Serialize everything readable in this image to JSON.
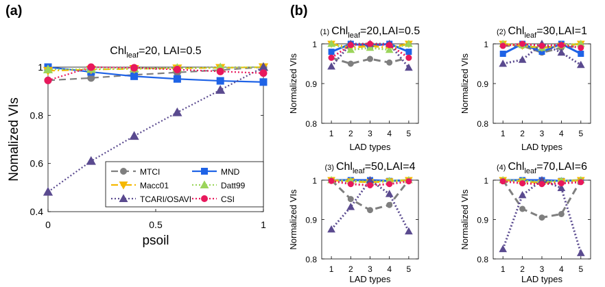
{
  "figure": {
    "panel_a_letter": "(a)",
    "panel_b_letter": "(b)"
  },
  "colors": {
    "MTCI": "#7f7f7f",
    "MND": "#1f63e6",
    "Macc01": "#f5b800",
    "Datt99": "#9bd45a",
    "TCARI/OSAVI": "#5a4a8f",
    "CSI": "#e8185c"
  },
  "chart_data": [
    {
      "id": "a",
      "type": "line",
      "title_main": "Chl",
      "title_sub": "leaf",
      "title_rest": "=20, LAI=0.5",
      "xlabel": "psoil",
      "ylabel": "Nomalized VIs",
      "xlim": [
        0,
        1
      ],
      "ylim": [
        0.4,
        1.0
      ],
      "xticks": [
        "0",
        "0.5",
        "1"
      ],
      "xtick_values": [
        0,
        0.5,
        1
      ],
      "yticks": [
        "0.4",
        "0.6",
        "0.8",
        "1"
      ],
      "ytick_values": [
        0.4,
        0.6,
        0.8,
        1.0
      ],
      "x": [
        0,
        0.2,
        0.4,
        0.6,
        0.8,
        1.0
      ],
      "legend_position": "lower-right",
      "series": [
        {
          "name": "MTCI",
          "style": "dashed",
          "marker": "circle",
          "values": [
            0.945,
            0.955,
            0.968,
            0.978,
            0.988,
            1.0
          ]
        },
        {
          "name": "MND",
          "style": "solid",
          "marker": "square",
          "values": [
            1.0,
            0.98,
            0.962,
            0.951,
            0.943,
            0.938
          ]
        },
        {
          "name": "Macc01",
          "style": "dashdot",
          "marker": "triangle-down",
          "values": [
            0.985,
            0.99,
            0.993,
            0.995,
            0.997,
            1.0
          ]
        },
        {
          "name": "Datt99",
          "style": "dotted",
          "marker": "triangle-up",
          "values": [
            0.99,
            0.992,
            0.994,
            0.996,
            0.998,
            1.0
          ]
        },
        {
          "name": "TCARI/OSAVI",
          "style": "dotted",
          "marker": "triangle-up",
          "values": [
            0.482,
            0.61,
            0.714,
            0.812,
            0.905,
            1.0
          ]
        },
        {
          "name": "CSI",
          "style": "dotted",
          "marker": "circle",
          "values": [
            0.945,
            1.0,
            0.997,
            0.99,
            0.982,
            0.975
          ]
        }
      ]
    },
    {
      "id": "b1",
      "type": "line",
      "tag": "(1)",
      "title_main": "Chl",
      "title_sub": "leaf",
      "title_rest": "=20,LAI=0.5",
      "xlabel": "LAD types",
      "ylabel": "Normalized VIs",
      "categories": [
        "1",
        "2",
        "3",
        "4",
        "5"
      ],
      "ylim": [
        0.8,
        1.0
      ],
      "yticks": [
        "0.8",
        "0.9",
        "1"
      ],
      "ytick_values": [
        0.8,
        0.9,
        1.0
      ],
      "series": [
        {
          "name": "MTCI",
          "values": [
            0.965,
            0.95,
            0.962,
            0.953,
            0.965
          ]
        },
        {
          "name": "MND",
          "values": [
            0.98,
            1.0,
            0.995,
            1.0,
            0.98
          ]
        },
        {
          "name": "Macc01",
          "values": [
            1.0,
            0.99,
            0.995,
            0.99,
            1.0
          ]
        },
        {
          "name": "Datt99",
          "values": [
            1.0,
            0.985,
            0.99,
            0.985,
            1.0
          ]
        },
        {
          "name": "TCARI/OSAVI",
          "values": [
            0.943,
            1.0,
            1.0,
            1.0,
            0.94
          ]
        },
        {
          "name": "CSI",
          "values": [
            0.965,
            0.997,
            1.0,
            0.997,
            0.965
          ]
        }
      ]
    },
    {
      "id": "b2",
      "type": "line",
      "tag": "(2)",
      "title_main": "Chl",
      "title_sub": "leaf",
      "title_rest": "=30,LAI=1",
      "xlabel": "LAD types",
      "ylabel": "Normalized VIs",
      "categories": [
        "1",
        "2",
        "3",
        "4",
        "5"
      ],
      "ylim": [
        0.8,
        1.0
      ],
      "yticks": [
        "0.8",
        "0.9",
        "1"
      ],
      "ytick_values": [
        0.8,
        0.9,
        1.0
      ],
      "series": [
        {
          "name": "MTCI",
          "values": [
            0.995,
            0.995,
            0.978,
            0.99,
            0.995
          ]
        },
        {
          "name": "MND",
          "values": [
            0.975,
            1.0,
            0.98,
            1.0,
            0.975
          ]
        },
        {
          "name": "Macc01",
          "values": [
            1.0,
            0.995,
            0.99,
            0.995,
            1.0
          ]
        },
        {
          "name": "Datt99",
          "values": [
            1.0,
            0.997,
            0.99,
            0.997,
            1.0
          ]
        },
        {
          "name": "TCARI/OSAVI",
          "values": [
            0.95,
            0.96,
            1.0,
            0.978,
            0.947
          ]
        },
        {
          "name": "CSI",
          "values": [
            0.995,
            1.0,
            0.995,
            0.997,
            0.99
          ]
        }
      ]
    },
    {
      "id": "b3",
      "type": "line",
      "tag": "(3)",
      "title_main": "Chl",
      "title_sub": "leaf",
      "title_rest": "=50,LAI=4",
      "xlabel": "LAD types",
      "ylabel": "Normalized VIs",
      "categories": [
        "1",
        "2",
        "3",
        "4",
        "5"
      ],
      "ylim": [
        0.8,
        1.0
      ],
      "yticks": [
        "0.8",
        "0.9",
        "1"
      ],
      "ytick_values": [
        0.8,
        0.9,
        1.0
      ],
      "series": [
        {
          "name": "MTCI",
          "values": [
            1.0,
            0.952,
            0.924,
            0.937,
            1.0
          ]
        },
        {
          "name": "MND",
          "values": [
            1.0,
            1.0,
            1.0,
            0.998,
            1.0
          ]
        },
        {
          "name": "Macc01",
          "values": [
            1.0,
            0.997,
            0.995,
            0.997,
            1.0
          ]
        },
        {
          "name": "Datt99",
          "values": [
            1.0,
            0.998,
            0.996,
            0.998,
            1.0
          ]
        },
        {
          "name": "TCARI/OSAVI",
          "values": [
            0.875,
            0.932,
            1.0,
            0.965,
            0.87
          ]
        },
        {
          "name": "CSI",
          "values": [
            0.998,
            0.99,
            0.987,
            0.99,
            0.997
          ]
        }
      ]
    },
    {
      "id": "b4",
      "type": "line",
      "tag": "(4)",
      "title_main": "Chl",
      "title_sub": "leaf",
      "title_rest": "=70,LAI=6",
      "xlabel": "LAD types",
      "ylabel": "Normalized VIs",
      "categories": [
        "1",
        "2",
        "3",
        "4",
        "5"
      ],
      "ylim": [
        0.8,
        1.0
      ],
      "yticks": [
        "0.8",
        "0.9",
        "1"
      ],
      "ytick_values": [
        0.8,
        0.9,
        1.0
      ],
      "series": [
        {
          "name": "MTCI",
          "values": [
            1.0,
            0.927,
            0.905,
            0.914,
            1.0
          ]
        },
        {
          "name": "MND",
          "values": [
            1.0,
            1.0,
            1.0,
            0.998,
            1.0
          ]
        },
        {
          "name": "Macc01",
          "values": [
            1.0,
            0.997,
            0.993,
            0.997,
            1.0
          ]
        },
        {
          "name": "Datt99",
          "values": [
            1.0,
            0.998,
            0.996,
            0.998,
            1.0
          ]
        },
        {
          "name": "TCARI/OSAVI",
          "values": [
            0.825,
            0.962,
            1.0,
            0.98,
            0.815
          ]
        },
        {
          "name": "CSI",
          "values": [
            0.997,
            0.992,
            0.99,
            0.992,
            0.995
          ]
        }
      ]
    }
  ]
}
